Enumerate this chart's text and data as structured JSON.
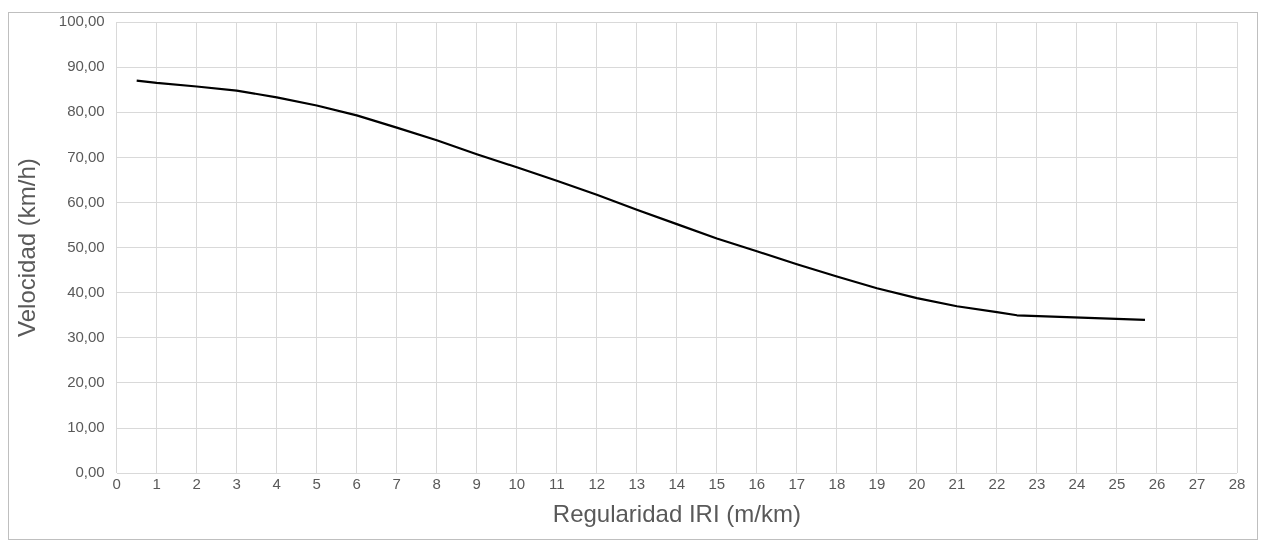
{
  "chart_data": {
    "type": "line",
    "xlabel": "Regularidad IRI (m/km)",
    "ylabel": "Velocidad (km/h)",
    "x": [
      0.5,
      1,
      2,
      3,
      4,
      5,
      6,
      7,
      8,
      9,
      10,
      11,
      12,
      13,
      14,
      15,
      16,
      17,
      18,
      19,
      20,
      21,
      22,
      22.5,
      25.7
    ],
    "series": [
      {
        "color": "#000000",
        "values": [
          87,
          86.5,
          85.7,
          84.8,
          83.3,
          81.5,
          79.3,
          76.6,
          73.8,
          70.7,
          67.8,
          64.8,
          61.7,
          58.4,
          55.2,
          52,
          49.2,
          46.3,
          43.6,
          41,
          38.8,
          37,
          35.7,
          35,
          34
        ]
      }
    ],
    "xlim": [
      0,
      28
    ],
    "xticks": [
      0,
      1,
      2,
      3,
      4,
      5,
      6,
      7,
      8,
      9,
      10,
      11,
      12,
      13,
      14,
      15,
      16,
      17,
      18,
      19,
      20,
      21,
      22,
      23,
      24,
      25,
      26,
      27,
      28
    ],
    "ylim": [
      0,
      100
    ],
    "yticks": [
      {
        "value": 0,
        "label": "0,00"
      },
      {
        "value": 10,
        "label": "10,00"
      },
      {
        "value": 20,
        "label": "20,00"
      },
      {
        "value": 30,
        "label": "30,00"
      },
      {
        "value": 40,
        "label": "40,00"
      },
      {
        "value": 50,
        "label": "50,00"
      },
      {
        "value": 60,
        "label": "60,00"
      },
      {
        "value": 70,
        "label": "70,00"
      },
      {
        "value": 80,
        "label": "80,00"
      },
      {
        "value": 90,
        "label": "90,00"
      },
      {
        "value": 100,
        "label": "100,00"
      }
    ],
    "grid": true,
    "legend": false,
    "marker": "none",
    "line_style": "solid"
  }
}
